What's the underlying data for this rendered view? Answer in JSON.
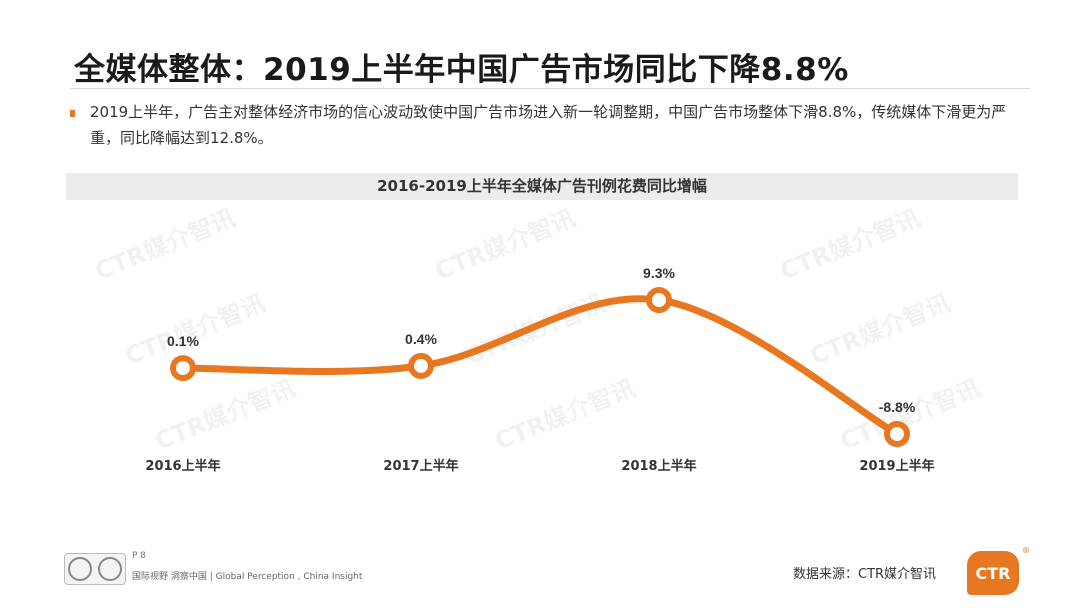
{
  "title": "全媒体整体：2019上半年中国广告市场同比下降8.8%",
  "description": "2019上半年，广告主对整体经济市场的信心波动致使中国广告市场进入新一轮调整期，中国广告市场整体下滑8.8%，传统媒体下滑更为严重，同比降幅达到12.8%。",
  "chart_title": "2016-2019上半年全媒体广告刊例花费同比增幅",
  "watermark_text": "CTR媒介智讯",
  "colors": {
    "accent": "#e87722"
  },
  "chart_data": {
    "type": "line",
    "title": "2016-2019上半年全媒体广告刊例花费同比增幅",
    "categories": [
      "2016上半年",
      "2017上半年",
      "2018上半年",
      "2019上半年"
    ],
    "values": [
      0.1,
      0.4,
      9.3,
      -8.8
    ],
    "data_labels": [
      "0.1%",
      "0.4%",
      "9.3%",
      "-8.8%"
    ],
    "unit": "%",
    "smooth": true,
    "grid": false,
    "legend": "none",
    "color": "#e87722"
  },
  "footer": {
    "page": "P 8",
    "tagline": "国际视野 洞察中国 | Global Perception , China Insight",
    "source": "数据来源：CTR媒介智讯",
    "brand": "CTR"
  }
}
